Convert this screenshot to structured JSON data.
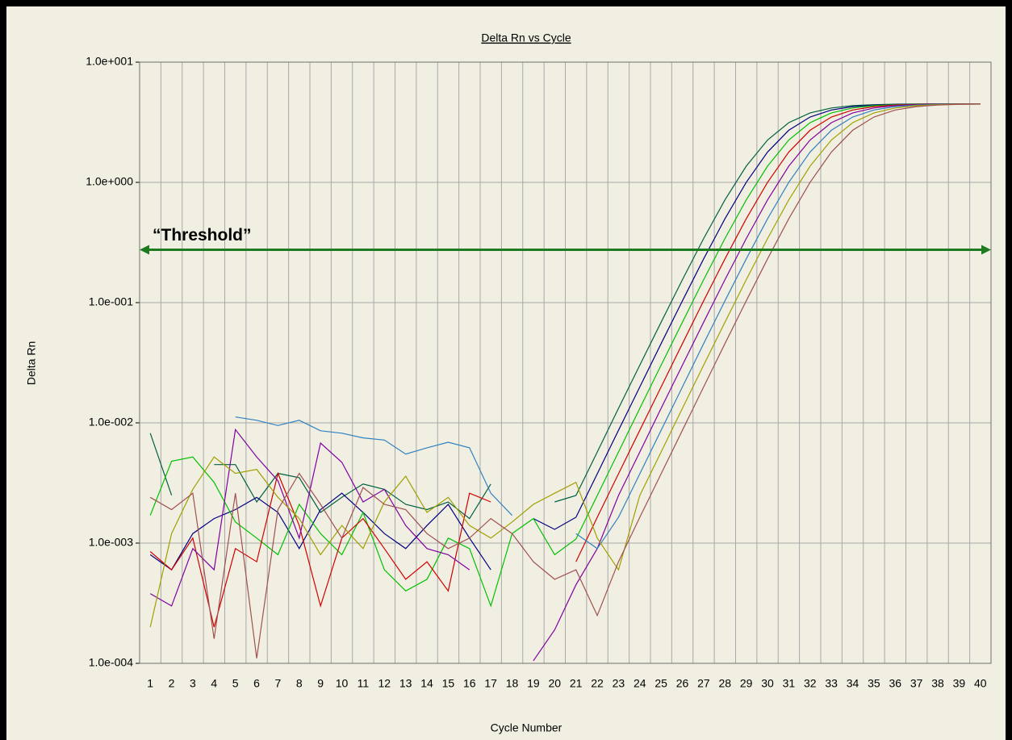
{
  "chart_data": {
    "type": "line",
    "title": "Delta Rn vs Cycle",
    "x_label": "Cycle Number",
    "y_label": "Delta Rn",
    "log_y": true,
    "grid": true,
    "categories": [
      "1",
      "2",
      "3",
      "4",
      "5",
      "6",
      "7",
      "8",
      "9",
      "10",
      "11",
      "12",
      "13",
      "14",
      "15",
      "16",
      "17",
      "18",
      "19",
      "20",
      "21",
      "22",
      "23",
      "24",
      "25",
      "26",
      "27",
      "28",
      "29",
      "30",
      "31",
      "32",
      "33",
      "34",
      "35",
      "36",
      "37",
      "38",
      "39",
      "40"
    ],
    "ylim": [
      0.0001,
      10
    ],
    "yticks": [
      {
        "value": 0.0001,
        "label": "1.0e-004"
      },
      {
        "value": 0.001,
        "label": "1.0e-003"
      },
      {
        "value": 0.01,
        "label": "1.0e-002"
      },
      {
        "value": 0.1,
        "label": "1.0e-001"
      },
      {
        "value": 1,
        "label": "1.0e+000"
      },
      {
        "value": 10,
        "label": "1.0e+001"
      }
    ],
    "threshold": {
      "label": "“Threshold”",
      "value": 0.275,
      "color": "#1e7a1e"
    },
    "series": [
      {
        "color": "#006040",
        "values": [
          0.0082,
          0.0025,
          null,
          0.0045,
          0.0045,
          0.0022,
          0.0038,
          0.0035,
          0.0018,
          0.0024,
          0.0031,
          0.0028,
          0.0021,
          0.0019,
          0.0022,
          0.0016,
          0.0031,
          null,
          null,
          0.0022,
          0.00249,
          0.00572,
          0.0132,
          0.0302,
          0.0687,
          0.155,
          0.341,
          0.715,
          1.364,
          2.25,
          3.136,
          3.785,
          4.159,
          4.345,
          4.431,
          4.47,
          4.487,
          4.494,
          4.497,
          4.499
        ]
      },
      {
        "color": "#000080",
        "values": [
          0.0008,
          0.0006,
          0.0012,
          0.0016,
          0.0019,
          0.0024,
          0.0018,
          0.0009,
          0.0019,
          0.0026,
          0.0018,
          0.0012,
          0.0009,
          0.0014,
          0.0021,
          0.0011,
          0.0006,
          null,
          0.0016,
          0.0013,
          0.00164,
          0.00377,
          0.00867,
          0.0199,
          0.0456,
          0.1034,
          0.231,
          0.498,
          1.002,
          1.788,
          2.712,
          3.498,
          4.002,
          4.269,
          4.397,
          4.455,
          4.48,
          4.491,
          4.496,
          4.498
        ]
      },
      {
        "color": "#00c000",
        "values": [
          0.0017,
          0.0048,
          0.0052,
          0.0032,
          0.0015,
          0.0011,
          0.0008,
          0.0021,
          0.0012,
          0.0008,
          0.0018,
          0.0006,
          0.0004,
          0.0005,
          0.0011,
          0.0009,
          0.0003,
          0.0012,
          0.0016,
          0.0008,
          0.00108,
          0.00249,
          0.00572,
          0.0132,
          0.0302,
          0.0687,
          0.155,
          0.341,
          0.715,
          1.364,
          2.25,
          3.136,
          3.785,
          4.159,
          4.345,
          4.431,
          4.47,
          4.487,
          4.494,
          4.497
        ]
      },
      {
        "color": "#d00000",
        "values": [
          0.00085,
          0.0006,
          0.0011,
          0.0002,
          0.0009,
          0.0007,
          0.0038,
          0.0014,
          0.0003,
          0.0011,
          0.0016,
          0.0009,
          0.0005,
          0.0007,
          0.0004,
          0.0026,
          0.0022,
          null,
          null,
          null,
          0.0007,
          0.00164,
          0.00377,
          0.00867,
          0.0199,
          0.0456,
          0.1034,
          0.231,
          0.498,
          1.002,
          1.788,
          2.712,
          3.498,
          4.002,
          4.269,
          4.397,
          4.455,
          4.48,
          4.491,
          4.496
        ]
      },
      {
        "color": "#8000a0",
        "values": [
          0.00038,
          0.0003,
          0.0009,
          0.0006,
          0.0088,
          0.0052,
          0.0033,
          0.0011,
          0.0068,
          0.0047,
          0.0022,
          0.0028,
          0.0014,
          0.0009,
          0.0008,
          0.0006,
          null,
          null,
          0.000105,
          0.00019,
          0.00045,
          0.0009,
          0.00249,
          0.00572,
          0.0132,
          0.0302,
          0.0687,
          0.155,
          0.341,
          0.715,
          1.364,
          2.25,
          3.136,
          3.785,
          4.159,
          4.345,
          4.431,
          4.47,
          4.487,
          4.494
        ]
      },
      {
        "color": "#3080c0",
        "values": [
          null,
          null,
          null,
          null,
          0.0112,
          0.0105,
          0.0095,
          0.0105,
          0.0086,
          0.0082,
          0.0075,
          0.0072,
          0.0055,
          0.0062,
          0.0069,
          0.0062,
          0.0026,
          0.0017,
          null,
          null,
          0.0012,
          0.0009,
          0.00164,
          0.00377,
          0.00867,
          0.0199,
          0.0456,
          0.1034,
          0.231,
          0.498,
          1.002,
          1.788,
          2.712,
          3.498,
          4.002,
          4.269,
          4.397,
          4.455,
          4.48,
          4.491
        ]
      },
      {
        "color": "#a0a000",
        "values": [
          0.0002,
          0.0012,
          0.0028,
          0.0052,
          0.0038,
          0.0041,
          0.0024,
          0.0016,
          0.0008,
          0.0014,
          0.0009,
          0.0022,
          0.0036,
          0.0018,
          0.0024,
          0.0014,
          0.0011,
          0.0015,
          0.0021,
          0.0026,
          0.0032,
          0.0011,
          0.0006,
          0.00249,
          0.00572,
          0.0132,
          0.0302,
          0.0687,
          0.155,
          0.341,
          0.715,
          1.364,
          2.25,
          3.136,
          3.785,
          4.159,
          4.345,
          4.431,
          4.47,
          4.487
        ]
      },
      {
        "color": "#a05050",
        "values": [
          0.0024,
          0.0019,
          0.0026,
          0.00016,
          0.0026,
          0.00011,
          0.0019,
          0.0038,
          0.0021,
          0.0011,
          0.0029,
          0.0021,
          0.0019,
          0.0012,
          0.0009,
          0.0011,
          0.0016,
          0.0012,
          0.0007,
          0.0005,
          0.0006,
          0.00025,
          0.0007,
          0.00164,
          0.00377,
          0.00867,
          0.0199,
          0.0456,
          0.1034,
          0.231,
          0.498,
          1.002,
          1.788,
          2.712,
          3.498,
          4.002,
          4.269,
          4.397,
          4.455,
          4.48
        ]
      }
    ]
  }
}
